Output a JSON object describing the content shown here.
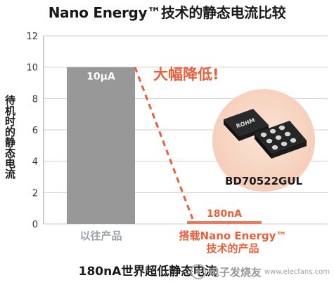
{
  "chart_data": {
    "type": "bar",
    "title": "Nano Energy™技术的静态电流比较",
    "subtitle": "180nA世界超低静态电流",
    "ylabel": "待机时的静态电流",
    "ylim": [
      0,
      12
    ],
    "yticks": [
      0,
      2,
      4,
      6,
      8,
      10,
      12
    ],
    "grid": true,
    "categories": [
      "以往产品",
      "搭载Nano Energy™\n技术的产品"
    ],
    "series": [
      {
        "values": [
          10,
          0.18
        ],
        "data_labels": [
          "10μA",
          "180nA"
        ]
      }
    ],
    "annotation": "大幅降低!",
    "product": {
      "chip_marking": "ROHM",
      "part_number": "BD70522GUL"
    },
    "colors": {
      "bar_prev": "#989898",
      "bar_new": "#ee7a5a",
      "accent": "#e8603c",
      "prev_label": "#9aa0a6",
      "grid": "#cfcfcf"
    }
  },
  "watermark": {
    "text": "电子发烧友",
    "site": "www.elecfans.com",
    "icon": "chip-logo-icon"
  }
}
